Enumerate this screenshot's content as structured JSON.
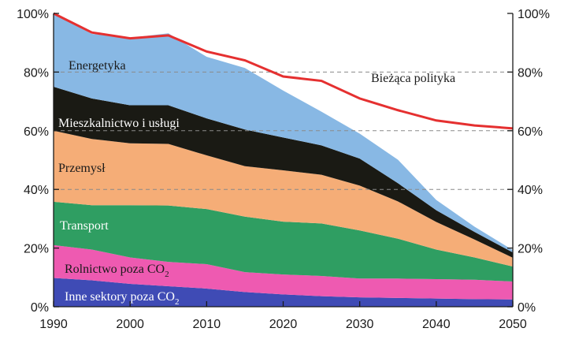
{
  "chart_data": {
    "type": "area",
    "stacked": true,
    "x": [
      1990,
      1995,
      2000,
      2005,
      2010,
      2015,
      2020,
      2025,
      2030,
      2035,
      2040,
      2045,
      2050
    ],
    "series": [
      {
        "name": "Inne sektory poza CO2",
        "label_main": "Inne sektory poza CO",
        "label_sub": "2",
        "color": "#3f4bb5",
        "values": [
          9.8,
          9.0,
          7.8,
          7.0,
          6.2,
          5.0,
          4.2,
          3.6,
          3.2,
          3.0,
          2.8,
          2.6,
          2.5
        ]
      },
      {
        "name": "Rolnictwo poza CO2",
        "label_main": "Rolnictwo poza CO",
        "label_sub": "2",
        "color": "#ee5ab1",
        "values": [
          11.2,
          10.5,
          9.0,
          8.3,
          8.3,
          6.8,
          6.8,
          6.9,
          6.4,
          6.6,
          6.6,
          6.6,
          6.1
        ]
      },
      {
        "name": "Transport",
        "label_main": "Transport",
        "label_sub": "",
        "color": "#2f9e62",
        "values": [
          14.8,
          15.1,
          17.8,
          19.2,
          18.8,
          18.9,
          18.0,
          17.9,
          16.4,
          13.6,
          10.1,
          7.6,
          5.1
        ]
      },
      {
        "name": "Przemysł",
        "label_main": "Przemysł",
        "label_sub": "",
        "color": "#f5ad77",
        "values": [
          24.2,
          22.6,
          21.1,
          21.0,
          18.3,
          17.2,
          17.5,
          16.6,
          15.3,
          12.7,
          9.4,
          6.1,
          3.0
        ]
      },
      {
        "name": "Mieszkalnictwo i usługi",
        "label_main": "Mieszkalnictwo i usługi",
        "label_sub": "",
        "color": "#1a1a14",
        "values": [
          15.0,
          13.8,
          13.0,
          13.2,
          12.6,
          12.5,
          11.2,
          10.0,
          9.2,
          6.2,
          4.0,
          2.6,
          1.8
        ]
      },
      {
        "name": "Energetyka",
        "label_main": "Energetyka",
        "label_sub": "",
        "color": "#88b8e4",
        "values": [
          25.0,
          22.0,
          23.0,
          24.5,
          21.0,
          21.0,
          16.0,
          11.5,
          8.5,
          8.0,
          3.5,
          1.8,
          0.8
        ]
      }
    ],
    "line": {
      "name": "Bieżąca polityka",
      "color": "#e53030",
      "values": [
        100,
        93.5,
        91.5,
        92.5,
        87,
        84,
        78.5,
        77,
        71,
        67,
        63.5,
        61.8,
        60.8
      ]
    },
    "ylim": [
      0,
      100
    ],
    "yticks": [
      "0%",
      "20%",
      "40%",
      "60%",
      "80%",
      "100%"
    ],
    "ytick_values": [
      0,
      20,
      40,
      60,
      80,
      100
    ],
    "xticks": [
      "1990",
      "2000",
      "2010",
      "2020",
      "2030",
      "2040",
      "2050"
    ],
    "xtick_values": [
      1990,
      2000,
      2010,
      2020,
      2030,
      2040,
      2050
    ],
    "gridlines_dashed_at": [
      40,
      60,
      80
    ],
    "label_colors": {
      "Inne sektory poza CO2": "#ffffff",
      "Rolnictwo poza CO2": "#1a1a1a",
      "Transport": "#ffffff",
      "Przemysł": "#1a1a1a",
      "Mieszkalnictwo i usługi": "#ffffff",
      "Energetyka": "#1a1a1a",
      "Bieżąca polityka": "#1a1a1a"
    }
  }
}
